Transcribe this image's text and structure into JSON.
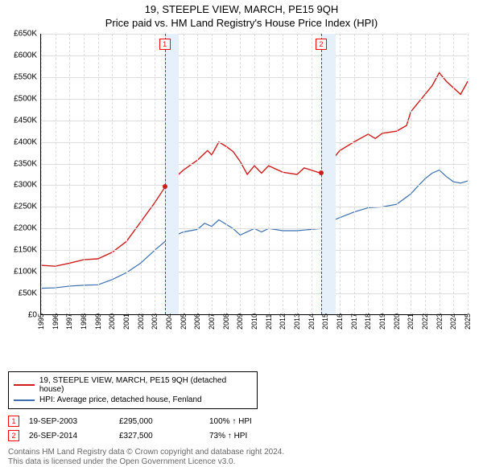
{
  "title": "19, STEEPLE VIEW, MARCH, PE15 9QH",
  "subtitle": "Price paid vs. HM Land Registry's House Price Index (HPI)",
  "chart": {
    "type": "line",
    "ylim": [
      0,
      650000
    ],
    "ytick_step": 50000,
    "ylabels": [
      "£0",
      "£50K",
      "£100K",
      "£150K",
      "£200K",
      "£250K",
      "£300K",
      "£350K",
      "£400K",
      "£450K",
      "£500K",
      "£550K",
      "£600K",
      "£650K"
    ],
    "xlim": [
      1995,
      2025
    ],
    "xlabels": [
      "1995",
      "1996",
      "1997",
      "1998",
      "1999",
      "2000",
      "2001",
      "2002",
      "2003",
      "2004",
      "2005",
      "2006",
      "2007",
      "2008",
      "2009",
      "2010",
      "2011",
      "2012",
      "2013",
      "2014",
      "2015",
      "2016",
      "2017",
      "2018",
      "2019",
      "2020",
      "2021",
      "2022",
      "2023",
      "2024",
      "2025"
    ],
    "background_color": "#ffffff",
    "grid_color": "#dddddd",
    "band_color": "#e6f0fa",
    "bands": [
      {
        "start": 2003.7,
        "end": 2004.7,
        "label": "1"
      },
      {
        "start": 2014.7,
        "end": 2015.7,
        "label": "2"
      }
    ],
    "series": [
      {
        "name": "price",
        "color": "#d01c1c",
        "line_width": 1.4,
        "points": [
          [
            1995,
            115000
          ],
          [
            1996,
            113000
          ],
          [
            1997,
            120000
          ],
          [
            1998,
            128000
          ],
          [
            1999,
            130000
          ],
          [
            2000,
            145000
          ],
          [
            2001,
            170000
          ],
          [
            2002,
            215000
          ],
          [
            2003,
            260000
          ],
          [
            2003.7,
            295000
          ],
          [
            2004.5,
            320000
          ],
          [
            2005,
            335000
          ],
          [
            2006,
            358000
          ],
          [
            2006.7,
            380000
          ],
          [
            2007,
            370000
          ],
          [
            2007.5,
            400000
          ],
          [
            2008,
            390000
          ],
          [
            2008.5,
            378000
          ],
          [
            2009,
            355000
          ],
          [
            2009.5,
            325000
          ],
          [
            2010,
            345000
          ],
          [
            2010.5,
            328000
          ],
          [
            2011,
            345000
          ],
          [
            2012,
            330000
          ],
          [
            2013,
            325000
          ],
          [
            2013.5,
            340000
          ],
          [
            2014,
            335000
          ],
          [
            2014.7,
            327500
          ],
          [
            2015,
            385000
          ],
          [
            2015.5,
            360000
          ],
          [
            2016,
            380000
          ],
          [
            2017,
            400000
          ],
          [
            2018,
            418000
          ],
          [
            2018.5,
            408000
          ],
          [
            2019,
            420000
          ],
          [
            2020,
            425000
          ],
          [
            2020.7,
            438000
          ],
          [
            2021,
            470000
          ],
          [
            2021.5,
            490000
          ],
          [
            2022,
            510000
          ],
          [
            2022.5,
            530000
          ],
          [
            2023,
            560000
          ],
          [
            2023.5,
            540000
          ],
          [
            2024,
            525000
          ],
          [
            2024.5,
            510000
          ],
          [
            2025,
            540000
          ]
        ]
      },
      {
        "name": "hpi",
        "color": "#3a6fb0",
        "line_width": 1.2,
        "points": [
          [
            1995,
            62000
          ],
          [
            1996,
            63000
          ],
          [
            1997,
            67000
          ],
          [
            1998,
            69000
          ],
          [
            1999,
            70000
          ],
          [
            2000,
            82000
          ],
          [
            2001,
            98000
          ],
          [
            2002,
            120000
          ],
          [
            2003,
            150000
          ],
          [
            2004,
            178000
          ],
          [
            2005,
            192000
          ],
          [
            2006,
            198000
          ],
          [
            2006.5,
            212000
          ],
          [
            2007,
            205000
          ],
          [
            2007.5,
            220000
          ],
          [
            2008,
            210000
          ],
          [
            2008.5,
            200000
          ],
          [
            2009,
            185000
          ],
          [
            2010,
            200000
          ],
          [
            2010.5,
            192000
          ],
          [
            2011,
            200000
          ],
          [
            2012,
            195000
          ],
          [
            2013,
            195000
          ],
          [
            2014,
            198000
          ],
          [
            2014.7,
            200000
          ],
          [
            2015,
            212000
          ],
          [
            2016,
            225000
          ],
          [
            2017,
            238000
          ],
          [
            2018,
            248000
          ],
          [
            2019,
            250000
          ],
          [
            2020,
            256000
          ],
          [
            2021,
            280000
          ],
          [
            2021.5,
            298000
          ],
          [
            2022,
            315000
          ],
          [
            2022.5,
            328000
          ],
          [
            2023,
            335000
          ],
          [
            2023.5,
            320000
          ],
          [
            2024,
            308000
          ],
          [
            2024.5,
            305000
          ],
          [
            2025,
            310000
          ]
        ]
      }
    ],
    "markers": [
      {
        "x": 2003.7,
        "y": 295000,
        "color": "#d01c1c"
      },
      {
        "x": 2014.7,
        "y": 327500,
        "color": "#d01c1c"
      }
    ]
  },
  "legend": {
    "items": [
      {
        "color": "#d01c1c",
        "label": "19, STEEPLE VIEW, MARCH, PE15 9QH (detached house)"
      },
      {
        "color": "#3a6fb0",
        "label": "HPI: Average price, detached house, Fenland"
      }
    ]
  },
  "sales": [
    {
      "n": "1",
      "date": "19-SEP-2003",
      "price": "£295,000",
      "pct": "100% ↑ HPI"
    },
    {
      "n": "2",
      "date": "26-SEP-2014",
      "price": "£327,500",
      "pct": "73% ↑ HPI"
    }
  ],
  "footer": {
    "line1": "Contains HM Land Registry data © Crown copyright and database right 2024.",
    "line2": "This data is licensed under the Open Government Licence v3.0."
  }
}
